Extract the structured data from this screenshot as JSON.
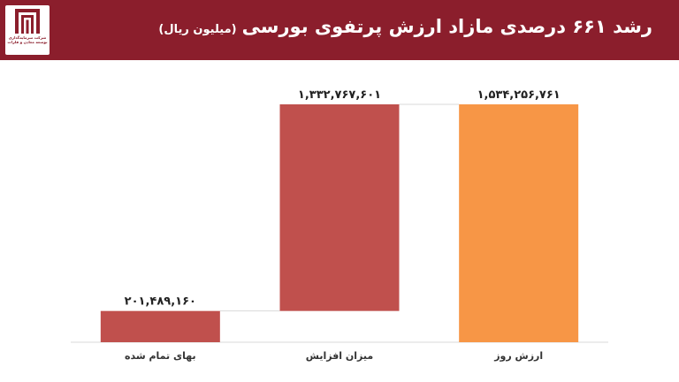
{
  "header": {
    "title": "رشد ۶۶۱ درصدی مازاد ارزش پرتفوی بورسی",
    "unit": "(میلیون ریال)",
    "logo_text": [
      "شرکت سرمایه‌گذاری",
      "توسعه معادن و فلزات"
    ]
  },
  "colors": {
    "header_bg": "#8b1e2c",
    "bar_red": "#c0504d",
    "bar_orange": "#f79646"
  },
  "chart_data": {
    "type": "bar",
    "subtype": "waterfall",
    "title": "رشد ۶۶۱ درصدی مازاد ارزش پرتفوی بورسی",
    "unit": "(میلیون ریال)",
    "categories": [
      "بهای تمام شده",
      "میزان افزایش",
      "ارزش روز"
    ],
    "values": [
      201489160,
      1332767601,
      1534256761
    ],
    "value_labels": [
      "۲۰۱,۴۸۹,۱۶۰",
      "۱,۳۳۲,۷۶۷,۶۰۱",
      "۱,۵۳۴,۲۵۶,۷۶۱"
    ],
    "bases": [
      0,
      201489160,
      0
    ],
    "colors": [
      "#c0504d",
      "#c0504d",
      "#f79646"
    ],
    "ylim": [
      0,
      1534256761
    ],
    "grid": false,
    "legend": "none"
  }
}
